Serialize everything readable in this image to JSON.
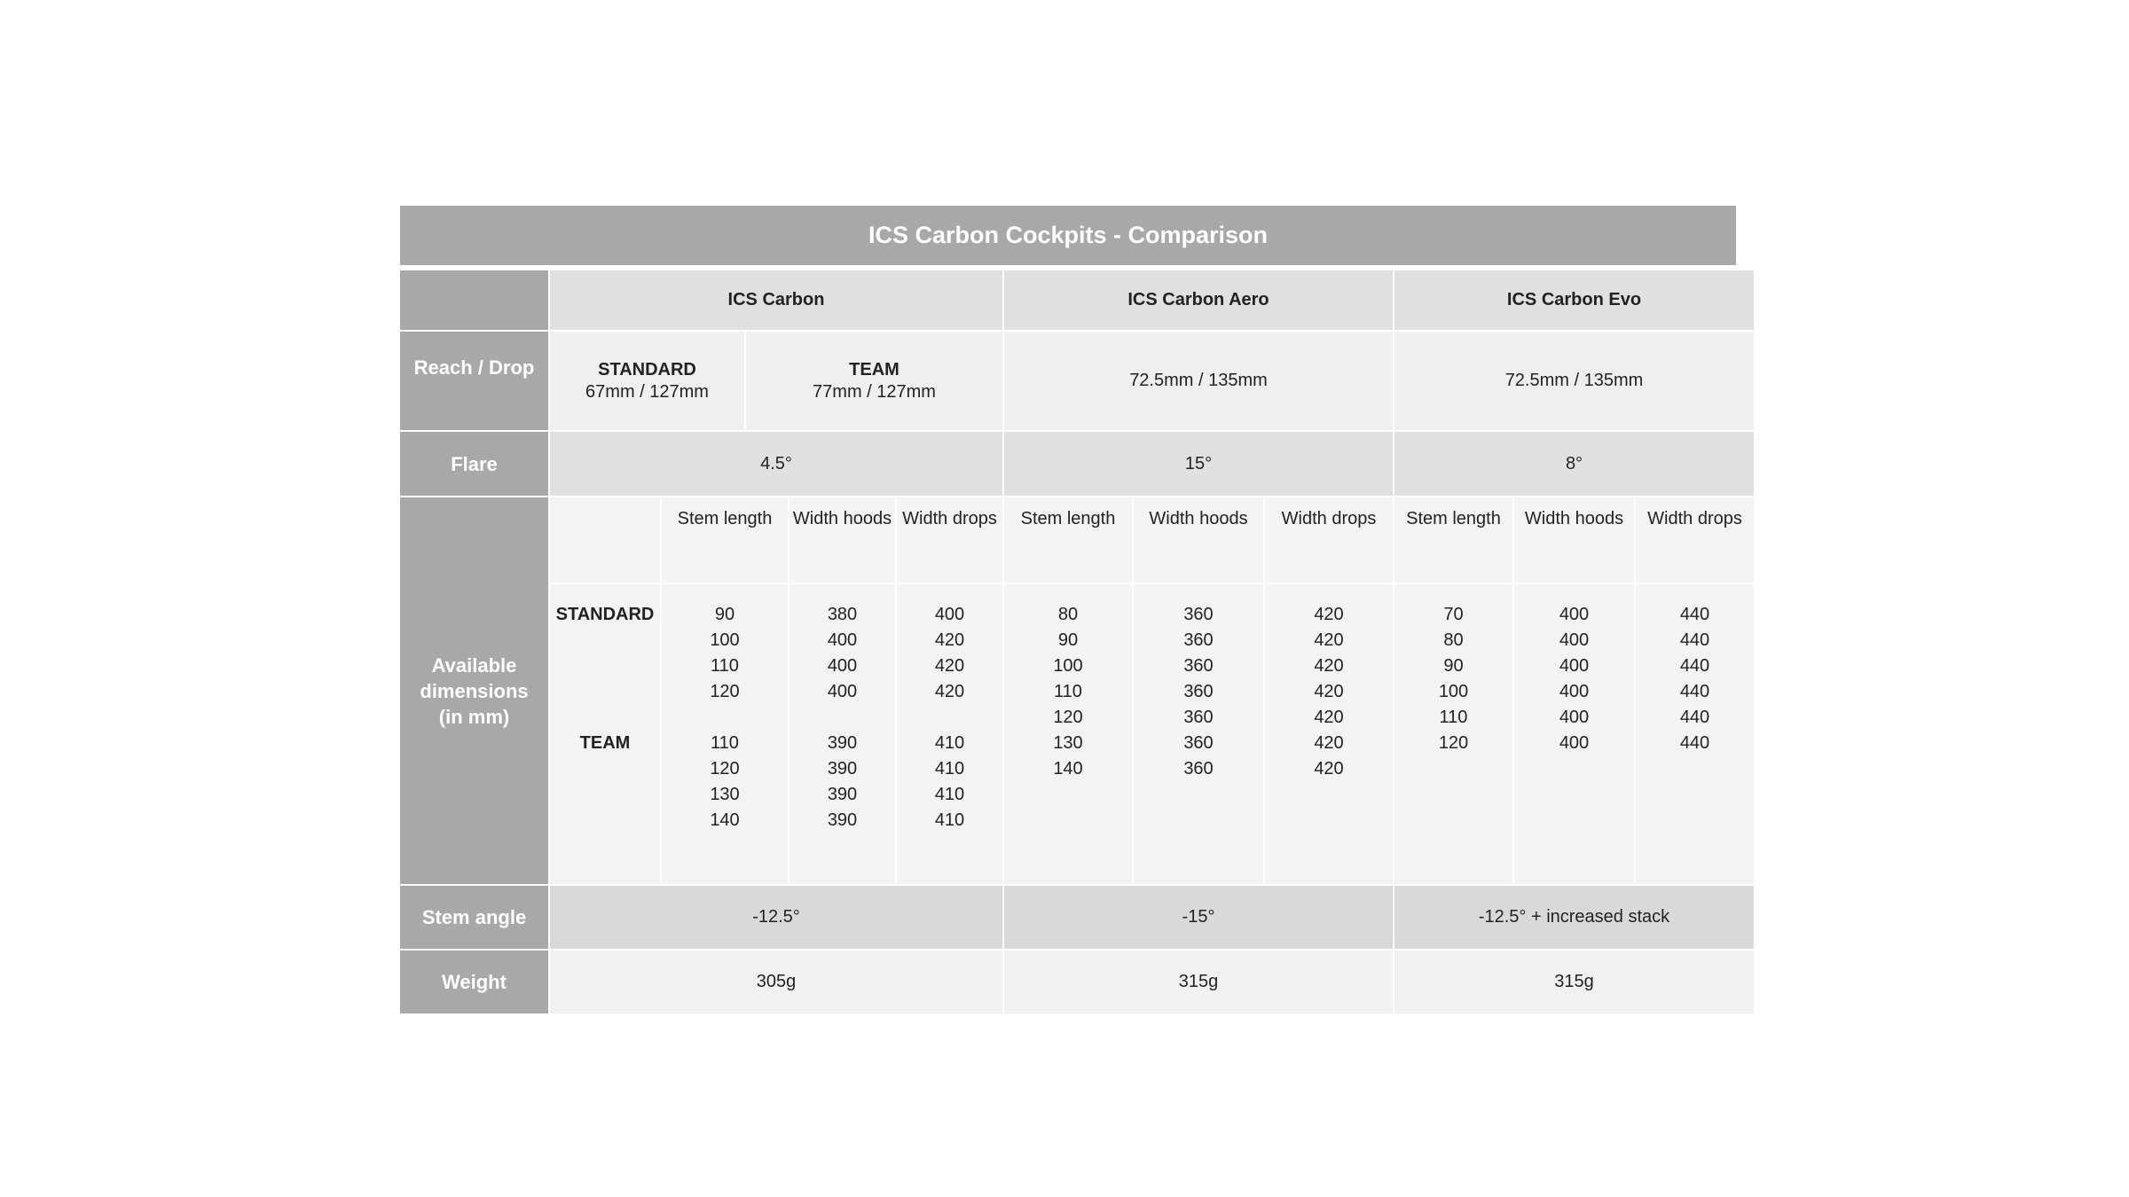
{
  "title": "ICS Carbon Cockpits - Comparison",
  "products": [
    "ICS Carbon",
    "ICS Carbon Aero",
    "ICS Carbon Evo"
  ],
  "rows": {
    "reach_drop": {
      "label": "Reach / Drop",
      "ics_carbon": {
        "standard_label": "STANDARD",
        "standard_value": "67mm / 127mm",
        "team_label": "TEAM",
        "team_value": "77mm / 127mm"
      },
      "aero": "72.5mm / 135mm",
      "evo": "72.5mm / 135mm"
    },
    "flare": {
      "label": "Flare",
      "values": [
        "4.5°",
        "15°",
        "8°"
      ]
    },
    "dimensions": {
      "label": "Available dimensions (in mm)",
      "subheaders": {
        "stem": "Stem length",
        "hoods": "Width hoods",
        "drops": "Width drops"
      },
      "ics_carbon": {
        "variants": [
          "STANDARD",
          "",
          "",
          "",
          "",
          "TEAM"
        ],
        "stem": [
          "90",
          "100",
          "110",
          "120",
          "",
          "110",
          "120",
          "130",
          "140"
        ],
        "hoods": [
          "380",
          "400",
          "400",
          "400",
          "",
          "390",
          "390",
          "390",
          "390"
        ],
        "drops": [
          "400",
          "420",
          "420",
          "420",
          "",
          "410",
          "410",
          "410",
          "410"
        ]
      },
      "aero": {
        "stem": [
          "80",
          "90",
          "100",
          "110",
          "120",
          "130",
          "140"
        ],
        "hoods": [
          "360",
          "360",
          "360",
          "360",
          "360",
          "360",
          "360"
        ],
        "drops": [
          "420",
          "420",
          "420",
          "420",
          "420",
          "420",
          "420"
        ]
      },
      "evo": {
        "stem": [
          "70",
          "80",
          "90",
          "100",
          "110",
          "120"
        ],
        "hoods": [
          "400",
          "400",
          "400",
          "400",
          "400",
          "400"
        ],
        "drops": [
          "440",
          "440",
          "440",
          "440",
          "440",
          "440"
        ]
      }
    },
    "stem_angle": {
      "label": "Stem angle",
      "values": [
        "-12.5°",
        "-15°",
        "-12.5° + increased stack"
      ]
    },
    "weight": {
      "label": "Weight",
      "values": [
        "305g",
        "315g",
        "315g"
      ]
    }
  },
  "colors": {
    "label_bg": "#a8a8a8",
    "header_bg": "#e0e0e0",
    "stem_angle_bg": "#d9d9d9",
    "cell_bg": "#f3f3f3"
  }
}
